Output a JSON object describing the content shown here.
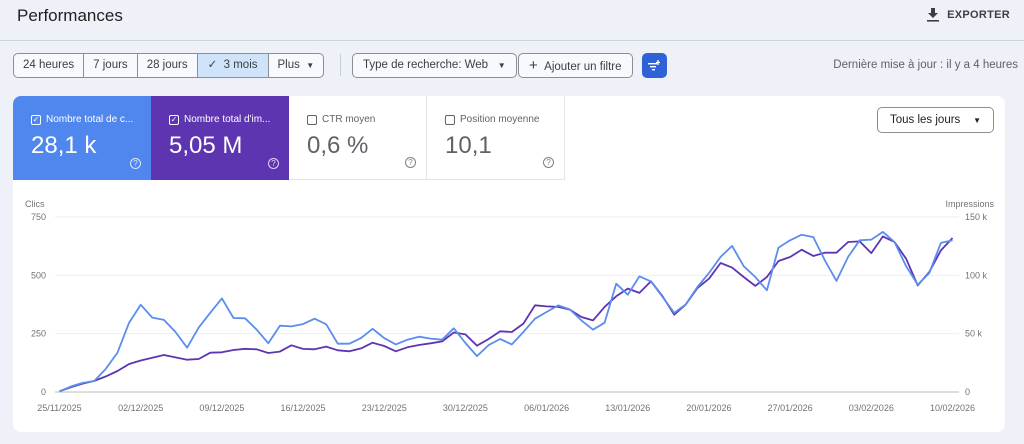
{
  "header": {
    "title": "Performances",
    "export_label": "EXPORTER"
  },
  "toolbar": {
    "ranges": [
      "24 heures",
      "7 jours",
      "28 jours",
      "3 mois",
      "Plus"
    ],
    "selected_range": "3 mois",
    "search_type": "Type de recherche: Web",
    "add_filter": "Ajouter un filtre",
    "last_update": "Dernière mise à jour : il y a 4 heures"
  },
  "metrics": [
    {
      "label": "Nombre total de c...",
      "value": "28,1 k",
      "checked": true,
      "color": "#4f87ee"
    },
    {
      "label": "Nombre total d'im...",
      "value": "5,05 M",
      "checked": true,
      "color": "#5e35b1"
    },
    {
      "label": "CTR moyen",
      "value": "0,6 %",
      "checked": false
    },
    {
      "label": "Position moyenne",
      "value": "10,1",
      "checked": false
    }
  ],
  "granularity": "Tous les jours",
  "chart_data": {
    "type": "line",
    "x_start": "25/11/2025",
    "x_end": "10/02/2026",
    "x_tick_labels": [
      "25/11/2025",
      "02/12/2025",
      "09/12/2025",
      "16/12/2025",
      "23/12/2025",
      "30/12/2025",
      "06/01/2026",
      "13/01/2026",
      "20/01/2026",
      "27/01/2026",
      "03/02/2026",
      "10/02/2026"
    ],
    "y_left": {
      "label": "Clics",
      "ticks": [
        "0",
        "250",
        "500",
        "750"
      ],
      "range": [
        0,
        750
      ]
    },
    "y_right": {
      "label": "Impressions",
      "ticks": [
        "0",
        "50 k",
        "100 k",
        "150 k"
      ],
      "range": [
        0,
        150000
      ]
    },
    "grid": true,
    "series": [
      {
        "name": "Nombre total de c...",
        "axis": "left",
        "color": "#5b8def",
        "values": [
          3,
          24,
          39,
          47,
          100,
          169,
          297,
          374,
          319,
          309,
          257,
          190,
          276,
          340,
          401,
          317,
          316,
          267,
          209,
          284,
          281,
          291,
          314,
          290,
          207,
          207,
          231,
          271,
          231,
          204,
          224,
          237,
          229,
          224,
          273,
          210,
          154,
          201,
          227,
          204,
          257,
          314,
          343,
          371,
          354,
          307,
          267,
          297,
          464,
          417,
          496,
          474,
          407,
          339,
          376,
          450,
          510,
          579,
          626,
          539,
          493,
          436,
          619,
          650,
          674,
          664,
          564,
          476,
          579,
          650,
          653,
          686,
          643,
          539,
          460,
          510,
          639,
          650
        ]
      },
      {
        "name": "Nombre total d'im...",
        "axis": "right",
        "color": "#5e35b1",
        "values": [
          600,
          4200,
          7200,
          9500,
          13400,
          18000,
          24000,
          27000,
          29400,
          31700,
          29700,
          27700,
          28300,
          33700,
          34000,
          36000,
          37000,
          36600,
          33400,
          34600,
          40000,
          36900,
          36600,
          38900,
          35700,
          34900,
          37400,
          42300,
          39400,
          34900,
          38300,
          40300,
          41700,
          43400,
          51000,
          49400,
          39700,
          45400,
          52000,
          51400,
          58600,
          74300,
          73400,
          72900,
          70600,
          64300,
          61400,
          72900,
          82000,
          88600,
          84900,
          94900,
          82000,
          66300,
          75100,
          89100,
          97100,
          110600,
          106600,
          98600,
          90900,
          98600,
          112300,
          115700,
          122000,
          116600,
          119400,
          119400,
          128600,
          129100,
          119100,
          133400,
          128600,
          114300,
          91400,
          102900,
          121400,
          132000
        ]
      }
    ]
  }
}
